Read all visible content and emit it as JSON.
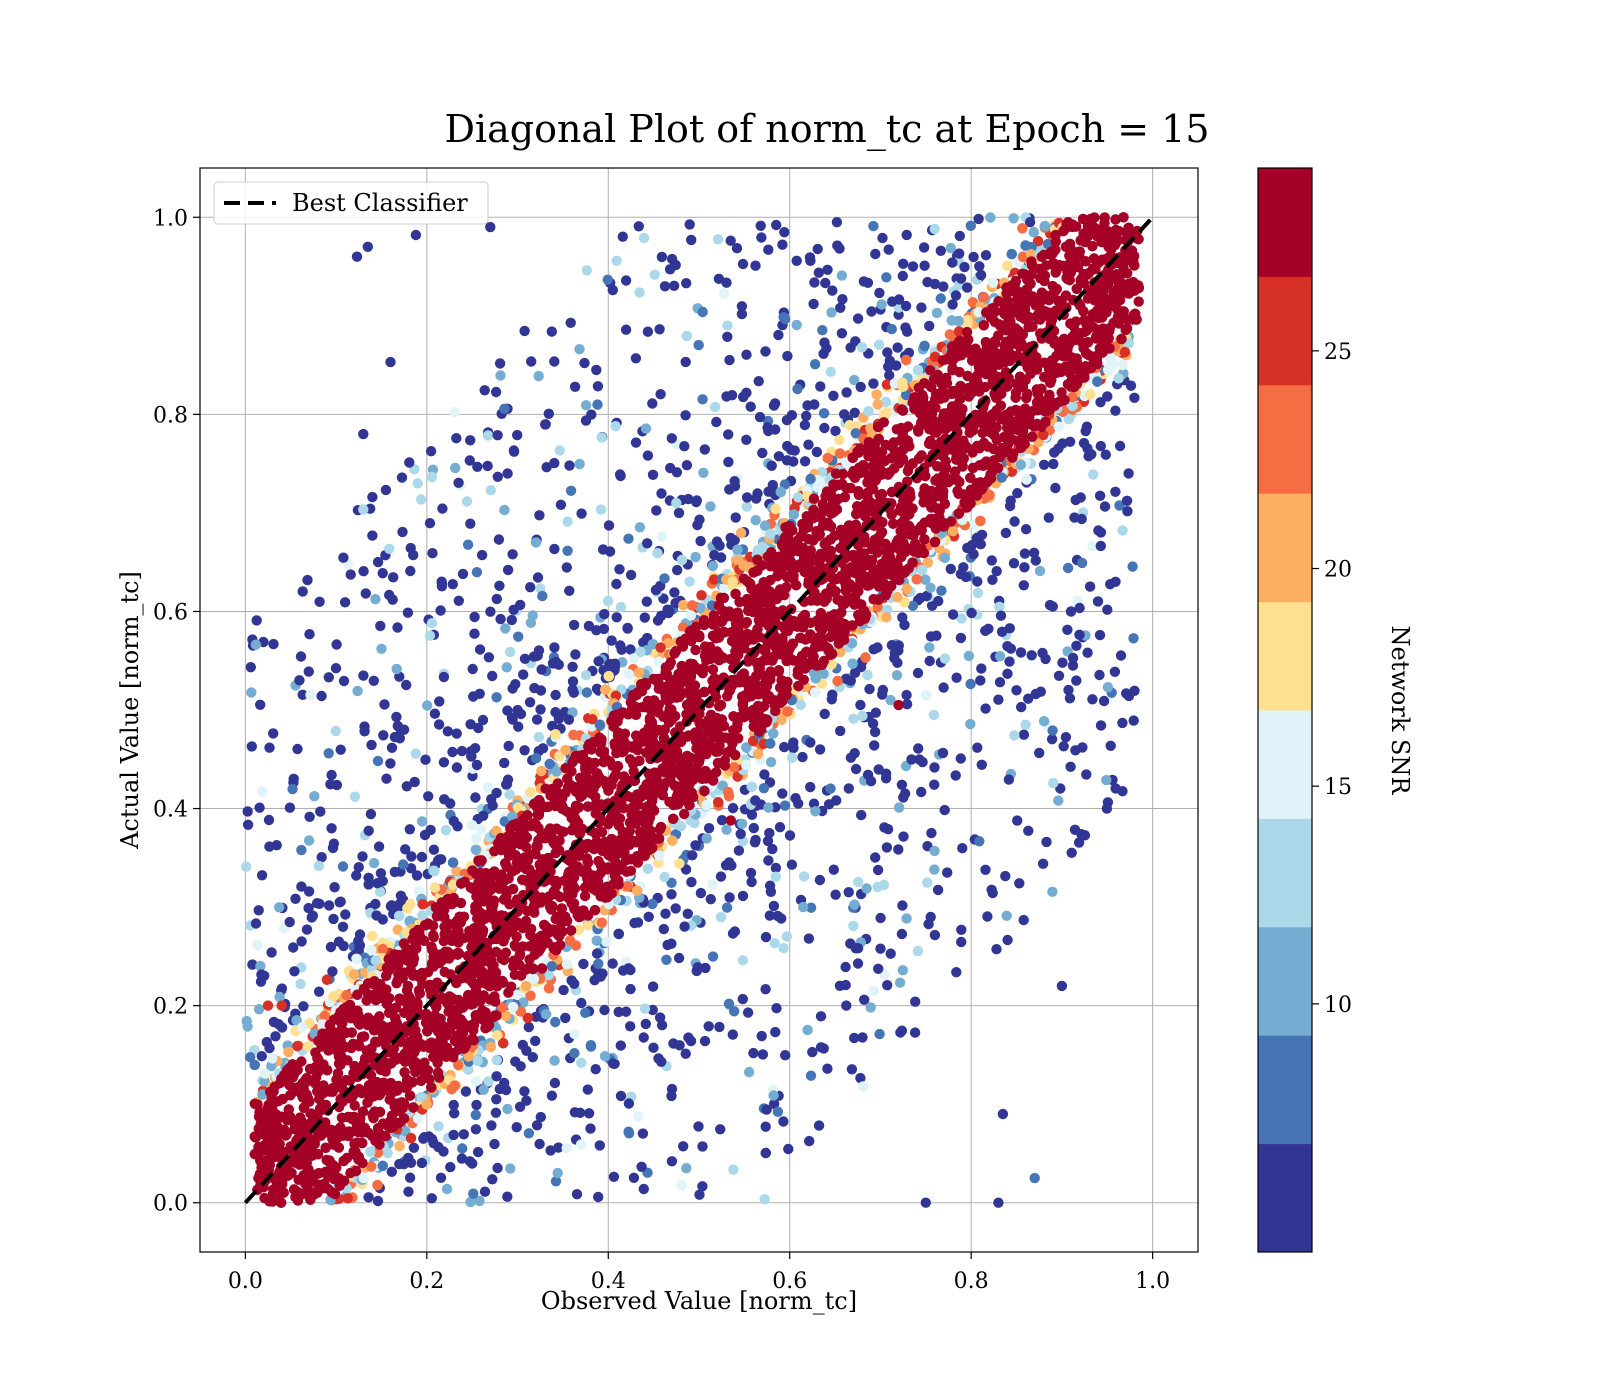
{
  "chart_data": {
    "type": "scatter",
    "title": "Diagonal Plot of norm_tc at Epoch = 15",
    "xlabel": "Observed Value [norm_tc]",
    "ylabel": "Actual Value [norm_tc]",
    "xlim": [
      -0.05,
      1.05
    ],
    "ylim": [
      -0.05,
      1.05
    ],
    "xticks": [
      "0.0",
      "0.2",
      "0.4",
      "0.6",
      "0.8",
      "1.0"
    ],
    "yticks": [
      "0.0",
      "0.2",
      "0.4",
      "0.6",
      "0.8",
      "1.0"
    ],
    "grid": true,
    "legend": {
      "position": "top-left",
      "entries": [
        "Best Classifier"
      ]
    },
    "reference_line": {
      "name": "Best Classifier",
      "style": "dashed",
      "color": "#000000",
      "x": [
        0,
        1
      ],
      "y": [
        0,
        1
      ]
    },
    "colorbar": {
      "label": "Network SNR",
      "range": [
        4.3,
        29.2
      ],
      "ticks": [
        10,
        15,
        20,
        25
      ],
      "tick_labels": [
        "10",
        "15",
        "20",
        "25"
      ],
      "colors": [
        "#313695",
        "#4575b4",
        "#74add1",
        "#abd9e9",
        "#e0f3f8",
        "#fee090",
        "#fdae61",
        "#f46d43",
        "#d73027",
        "#a50026"
      ]
    },
    "point_summary": {
      "description_of_distribution": "dense band along y = x with width about ±0.1 colored dark red (high SNR); orange/yellow edges; sparse low-SNR (blue) points spread widely above and below the band",
      "band_halfwidth": 0.09,
      "sample_points": [
        {
          "x": 0.123,
          "y": 0.96,
          "snr": 5
        },
        {
          "x": 0.135,
          "y": 0.97,
          "snr": 5
        },
        {
          "x": 0.188,
          "y": 0.982,
          "snr": 5
        },
        {
          "x": 0.27,
          "y": 0.99,
          "snr": 5
        },
        {
          "x": 0.16,
          "y": 0.853,
          "snr": 5
        },
        {
          "x": 0.13,
          "y": 0.78,
          "snr": 5
        },
        {
          "x": 0.14,
          "y": 0.716,
          "snr": 5
        },
        {
          "x": 0.14,
          "y": 0.677,
          "snr": 5
        },
        {
          "x": 0.175,
          "y": 0.48,
          "snr": 5
        },
        {
          "x": 0.095,
          "y": 0.434,
          "snr": 5
        },
        {
          "x": 0.095,
          "y": 0.38,
          "snr": 5
        },
        {
          "x": 0.75,
          "y": 0.0,
          "snr": 5
        },
        {
          "x": 0.83,
          "y": 0.0,
          "snr": 5
        },
        {
          "x": 0.9,
          "y": 0.22,
          "snr": 5
        },
        {
          "x": 0.87,
          "y": 0.025,
          "snr": 8
        },
        {
          "x": 0.835,
          "y": 0.09,
          "snr": 5
        },
        {
          "x": 0.91,
          "y": 0.6,
          "snr": 5
        },
        {
          "x": 0.89,
          "y": 0.605,
          "snr": 5
        },
        {
          "x": 0.81,
          "y": 0.53,
          "snr": 5
        },
        {
          "x": 0.85,
          "y": 0.52,
          "snr": 5
        },
        {
          "x": 0.86,
          "y": 0.485,
          "snr": 12
        },
        {
          "x": 0.72,
          "y": 0.505,
          "snr": 27
        },
        {
          "x": 0.535,
          "y": 0.388,
          "snr": 28
        },
        {
          "x": 0.025,
          "y": 0.2,
          "snr": 26
        },
        {
          "x": 0.04,
          "y": 0.2,
          "snr": 26
        },
        {
          "x": 0.19,
          "y": 0.73,
          "snr": 12
        },
        {
          "x": 0.475,
          "y": 0.71,
          "snr": 13
        }
      ]
    }
  }
}
